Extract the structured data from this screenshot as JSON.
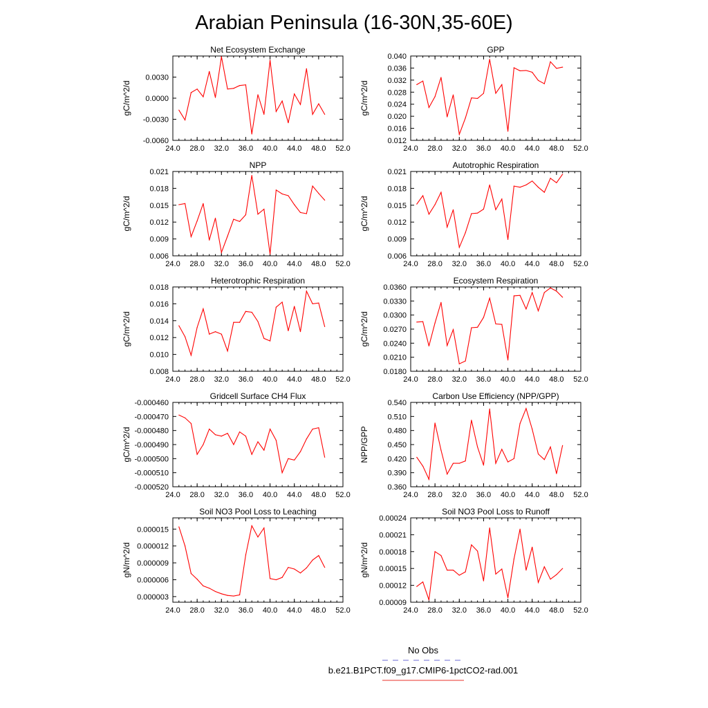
{
  "title": "Arabian Peninsula (16-30N,35-60E)",
  "legend": {
    "obs_label": "No Obs",
    "obs_color": "#6b6bd6",
    "model_label": "b.e21.B1PCT.f09_g17.CMIP6-1pctCO2-rad.001",
    "model_color": "#e8302a"
  },
  "colors": {
    "line": "#ff0000",
    "axis": "#000000"
  },
  "chart_data": [
    {
      "type": "line",
      "title": "Net Ecosystem Exchange",
      "ylabel": "gC/m^2/d",
      "xlim": [
        24,
        52
      ],
      "ylim": [
        -0.006,
        0.006
      ],
      "xticks": [
        "24.0",
        "28.0",
        "32.0",
        "36.0",
        "40.0",
        "44.0",
        "48.0",
        "52.0"
      ],
      "yticks": [
        -0.006,
        -0.003,
        0.0,
        0.003
      ],
      "ytick_labels": [
        "-0.0060",
        "-0.0030",
        "0.0000",
        "0.0030"
      ],
      "x": [
        25,
        26,
        27,
        28,
        29,
        30,
        31,
        32,
        33,
        34,
        35,
        36,
        37,
        38,
        39,
        40,
        41,
        42,
        43,
        44,
        45,
        46,
        47,
        48,
        49
      ],
      "y": [
        -0.0017,
        -0.0031,
        0.0008,
        0.0013,
        0.0002,
        0.0038,
        0.0001,
        0.0059,
        0.0013,
        0.0014,
        0.0018,
        0.0019,
        -0.0051,
        0.0005,
        -0.0023,
        0.0054,
        -0.0019,
        -0.0004,
        -0.0035,
        0.0006,
        -0.0009,
        0.0042,
        -0.0023,
        -0.0008,
        -0.0023
      ]
    },
    {
      "type": "line",
      "title": "GPP",
      "ylabel": "gC/m^2/d",
      "xlim": [
        24,
        52
      ],
      "ylim": [
        0.012,
        0.04
      ],
      "xticks": [
        "24.0",
        "28.0",
        "32.0",
        "36.0",
        "40.0",
        "44.0",
        "48.0",
        "52.0"
      ],
      "yticks": [
        0.012,
        0.016,
        0.02,
        0.024,
        0.028,
        0.032,
        0.036,
        0.04
      ],
      "ytick_labels": [
        "0.012",
        "0.016",
        "0.020",
        "0.024",
        "0.028",
        "0.032",
        "0.036",
        "0.040"
      ],
      "x": [
        25,
        26,
        27,
        28,
        29,
        30,
        31,
        32,
        33,
        34,
        35,
        36,
        37,
        38,
        39,
        40,
        41,
        42,
        43,
        44,
        45,
        46,
        47,
        48,
        49
      ],
      "y": [
        0.0305,
        0.0317,
        0.0229,
        0.0265,
        0.0329,
        0.0198,
        0.0271,
        0.014,
        0.0194,
        0.0261,
        0.0259,
        0.0276,
        0.0389,
        0.0276,
        0.0305,
        0.015,
        0.0361,
        0.0351,
        0.0352,
        0.0346,
        0.0319,
        0.0308,
        0.0381,
        0.0359,
        0.0363
      ]
    },
    {
      "type": "line",
      "title": "NPP",
      "ylabel": "gC/m^2/d",
      "xlim": [
        24,
        52
      ],
      "ylim": [
        0.006,
        0.021
      ],
      "xticks": [
        "24.0",
        "28.0",
        "32.0",
        "36.0",
        "40.0",
        "44.0",
        "48.0",
        "52.0"
      ],
      "yticks": [
        0.006,
        0.009,
        0.012,
        0.015,
        0.018,
        0.021
      ],
      "ytick_labels": [
        "0.006",
        "0.009",
        "0.012",
        "0.015",
        "0.018",
        "0.021"
      ],
      "x": [
        25,
        26,
        27,
        28,
        29,
        30,
        31,
        32,
        33,
        34,
        35,
        36,
        37,
        38,
        39,
        40,
        41,
        42,
        43,
        44,
        45,
        46,
        47,
        48,
        49
      ],
      "y": [
        0.0151,
        0.0153,
        0.0094,
        0.0122,
        0.0153,
        0.0088,
        0.0127,
        0.0066,
        0.0095,
        0.0125,
        0.0121,
        0.0133,
        0.0203,
        0.0134,
        0.0143,
        0.0063,
        0.0177,
        0.017,
        0.0167,
        0.0151,
        0.0137,
        0.0135,
        0.0184,
        0.0171,
        0.0159
      ]
    },
    {
      "type": "line",
      "title": "Autotrophic Respiration",
      "ylabel": "gC/m^2/d",
      "xlim": [
        24,
        52
      ],
      "ylim": [
        0.006,
        0.021
      ],
      "xticks": [
        "24.0",
        "28.0",
        "32.0",
        "36.0",
        "40.0",
        "44.0",
        "48.0",
        "52.0"
      ],
      "yticks": [
        0.006,
        0.009,
        0.012,
        0.015,
        0.018,
        0.021
      ],
      "ytick_labels": [
        "0.006",
        "0.009",
        "0.012",
        "0.015",
        "0.018",
        "0.021"
      ],
      "x": [
        25,
        26,
        27,
        28,
        29,
        30,
        31,
        32,
        33,
        34,
        35,
        36,
        37,
        38,
        39,
        40,
        41,
        42,
        43,
        44,
        45,
        46,
        47,
        48,
        49
      ],
      "y": [
        0.0152,
        0.0167,
        0.0134,
        0.0151,
        0.0173,
        0.0111,
        0.0142,
        0.0075,
        0.0101,
        0.0135,
        0.0136,
        0.0143,
        0.0186,
        0.0142,
        0.0161,
        0.0089,
        0.0184,
        0.0182,
        0.0186,
        0.0193,
        0.0182,
        0.0173,
        0.0198,
        0.019,
        0.0205
      ]
    },
    {
      "type": "line",
      "title": "Heterotrophic Respiration",
      "ylabel": "gC/m^2/d",
      "xlim": [
        24,
        52
      ],
      "ylim": [
        0.008,
        0.018
      ],
      "xticks": [
        "24.0",
        "28.0",
        "32.0",
        "36.0",
        "40.0",
        "44.0",
        "48.0",
        "52.0"
      ],
      "yticks": [
        0.008,
        0.01,
        0.012,
        0.014,
        0.016,
        0.018
      ],
      "ytick_labels": [
        "0.008",
        "0.010",
        "0.012",
        "0.014",
        "0.016",
        "0.018"
      ],
      "x": [
        25,
        26,
        27,
        28,
        29,
        30,
        31,
        32,
        33,
        34,
        35,
        36,
        37,
        38,
        39,
        40,
        41,
        42,
        43,
        44,
        45,
        46,
        47,
        48,
        49
      ],
      "y": [
        0.0134,
        0.0121,
        0.0099,
        0.0132,
        0.0154,
        0.0124,
        0.0127,
        0.0124,
        0.0104,
        0.0138,
        0.0138,
        0.0151,
        0.015,
        0.0139,
        0.0119,
        0.0116,
        0.0156,
        0.0162,
        0.0128,
        0.0157,
        0.0127,
        0.0175,
        0.016,
        0.0161,
        0.0133
      ]
    },
    {
      "type": "line",
      "title": "Ecosystem Respiration",
      "ylabel": "gC/m^2/d",
      "xlim": [
        24,
        52
      ],
      "ylim": [
        0.018,
        0.036
      ],
      "xticks": [
        "24.0",
        "28.0",
        "32.0",
        "36.0",
        "40.0",
        "44.0",
        "48.0",
        "52.0"
      ],
      "yticks": [
        0.018,
        0.021,
        0.024,
        0.027,
        0.03,
        0.033,
        0.036
      ],
      "ytick_labels": [
        "0.0180",
        "0.0210",
        "0.0240",
        "0.0270",
        "0.0300",
        "0.0330",
        "0.0360"
      ],
      "x": [
        25,
        26,
        27,
        28,
        29,
        30,
        31,
        32,
        33,
        34,
        35,
        36,
        37,
        38,
        39,
        40,
        41,
        42,
        43,
        44,
        45,
        46,
        47,
        48,
        49
      ],
      "y": [
        0.0285,
        0.0286,
        0.0234,
        0.0283,
        0.0327,
        0.0235,
        0.0269,
        0.0196,
        0.0202,
        0.0273,
        0.0274,
        0.0295,
        0.0336,
        0.0281,
        0.028,
        0.0204,
        0.0341,
        0.0342,
        0.0313,
        0.0348,
        0.0309,
        0.0348,
        0.0358,
        0.0351,
        0.0338
      ]
    },
    {
      "type": "line",
      "title": "Gridcell Surface CH4 Flux",
      "ylabel": "gC/m^2/d",
      "xlim": [
        24,
        52
      ],
      "ylim": [
        -0.00052,
        -0.00046
      ],
      "xticks": [
        "24.0",
        "28.0",
        "32.0",
        "36.0",
        "40.0",
        "44.0",
        "48.0",
        "52.0"
      ],
      "yticks": [
        -0.00052,
        -0.00051,
        -0.0005,
        -0.00049,
        -0.00048,
        -0.00047,
        -0.00046
      ],
      "ytick_labels": [
        "-0.000520",
        "-0.000510",
        "-0.000500",
        "-0.000490",
        "-0.000480",
        "-0.000470",
        "-0.000460"
      ],
      "x": [
        25,
        26,
        27,
        28,
        29,
        30,
        31,
        32,
        33,
        34,
        35,
        36,
        37,
        38,
        39,
        40,
        41,
        42,
        43,
        44,
        45,
        46,
        47,
        48,
        49
      ],
      "y": [
        -0.000469,
        -0.000471,
        -0.000475,
        -0.000497,
        -0.00049,
        -0.000479,
        -0.000483,
        -0.000484,
        -0.000482,
        -0.00049,
        -0.000481,
        -0.000484,
        -0.000497,
        -0.000488,
        -0.000494,
        -0.000479,
        -0.000487,
        -0.00051,
        -0.0005,
        -0.000501,
        -0.000495,
        -0.000486,
        -0.000479,
        -0.000478,
        -0.000499
      ]
    },
    {
      "type": "line",
      "title": "Carbon Use Efficiency (NPP/GPP)",
      "ylabel": "NPP/GPP",
      "xlim": [
        24,
        52
      ],
      "ylim": [
        0.36,
        0.54
      ],
      "xticks": [
        "24.0",
        "28.0",
        "32.0",
        "36.0",
        "40.0",
        "44.0",
        "48.0",
        "52.0"
      ],
      "yticks": [
        0.36,
        0.39,
        0.42,
        0.45,
        0.48,
        0.51,
        0.54
      ],
      "ytick_labels": [
        "0.360",
        "0.390",
        "0.420",
        "0.450",
        "0.480",
        "0.510",
        "0.540"
      ],
      "x": [
        25,
        26,
        27,
        28,
        29,
        30,
        31,
        32,
        33,
        34,
        35,
        36,
        37,
        38,
        39,
        40,
        41,
        42,
        43,
        44,
        45,
        46,
        47,
        48,
        49
      ],
      "y": [
        0.423,
        0.404,
        0.376,
        0.496,
        0.438,
        0.387,
        0.41,
        0.41,
        0.415,
        0.502,
        0.445,
        0.406,
        0.526,
        0.41,
        0.44,
        0.413,
        0.42,
        0.495,
        0.527,
        0.483,
        0.43,
        0.418,
        0.445,
        0.388,
        0.448
      ]
    },
    {
      "type": "line",
      "title": "Soil NO3 Pool Loss to Leaching",
      "ylabel": "gN/m^2/d",
      "xlim": [
        24,
        52
      ],
      "ylim": [
        2e-06,
        1.7e-05
      ],
      "xticks": [
        "24.0",
        "28.0",
        "32.0",
        "36.0",
        "40.0",
        "44.0",
        "48.0",
        "52.0"
      ],
      "yticks": [
        3e-06,
        6e-06,
        9e-06,
        1.2e-05,
        1.5e-05
      ],
      "ytick_labels": [
        "0.000003",
        "0.000006",
        "0.000009",
        "0.000012",
        "0.000015"
      ],
      "x": [
        25,
        26,
        27,
        28,
        29,
        30,
        31,
        32,
        33,
        34,
        35,
        36,
        37,
        38,
        39,
        40,
        41,
        42,
        43,
        44,
        45,
        46,
        47,
        48,
        49
      ],
      "y": [
        1.54e-05,
        1.2e-05,
        7.1e-06,
        6.1e-06,
        4.9e-06,
        4.5e-06,
        3.9e-06,
        3.5e-06,
        3.2e-06,
        3.1e-06,
        3.3e-06,
        1.04e-05,
        1.56e-05,
        1.36e-05,
        1.52e-05,
        6.2e-06,
        6e-06,
        6.4e-06,
        8.2e-06,
        7.9e-06,
        7.2e-06,
        8.1e-06,
        9.5e-06,
        1.03e-05,
        8.2e-06
      ]
    },
    {
      "type": "line",
      "title": "Soil NO3 Pool Loss to Runoff",
      "ylabel": "gN/m^2/d",
      "xlim": [
        24,
        52
      ],
      "ylim": [
        9e-05,
        0.00024
      ],
      "xticks": [
        "24.0",
        "28.0",
        "32.0",
        "36.0",
        "40.0",
        "44.0",
        "48.0",
        "52.0"
      ],
      "yticks": [
        9e-05,
        0.00012,
        0.00015,
        0.00018,
        0.00021,
        0.00024
      ],
      "ytick_labels": [
        "0.00009",
        "0.00012",
        "0.00015",
        "0.00018",
        "0.00021",
        "0.00024"
      ],
      "x": [
        25,
        26,
        27,
        28,
        29,
        30,
        31,
        32,
        33,
        34,
        35,
        36,
        37,
        38,
        39,
        40,
        41,
        42,
        43,
        44,
        45,
        46,
        47,
        48,
        49
      ],
      "y": [
        0.000118,
        0.000126,
        9.4e-05,
        0.00018,
        0.000173,
        0.000147,
        0.000147,
        0.000138,
        0.000144,
        0.000192,
        0.000181,
        0.000128,
        0.000222,
        0.00014,
        0.000149,
        9.8e-05,
        0.000167,
        0.00022,
        0.000147,
        0.000188,
        0.000125,
        0.000153,
        0.000131,
        0.000139,
        0.00015
      ]
    }
  ]
}
